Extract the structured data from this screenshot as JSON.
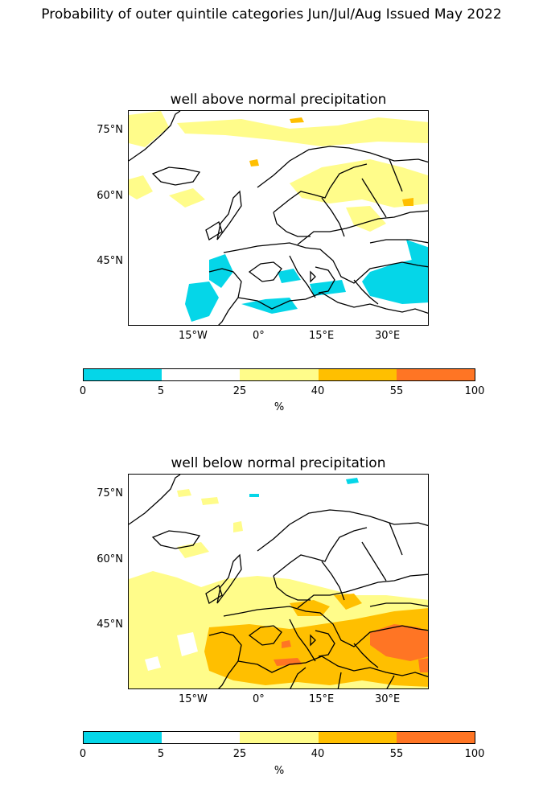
{
  "suptitle": "Probability of outer quintile categories Jun/Jul/Aug Issued May 2022",
  "panels": [
    {
      "title": "well above normal precipitation",
      "x_ticks": [
        "15°W",
        "0°",
        "15°E",
        "30°E"
      ],
      "y_ticks": [
        "75°N",
        "60°N",
        "45°N"
      ],
      "colorbar": {
        "labels": [
          "0",
          "5",
          "25",
          "40",
          "55",
          "100"
        ],
        "unit": "%"
      }
    },
    {
      "title": "well below normal precipitation",
      "x_ticks": [
        "15°W",
        "0°",
        "15°E",
        "30°E"
      ],
      "y_ticks": [
        "75°N",
        "60°N",
        "45°N"
      ],
      "colorbar": {
        "labels": [
          "0",
          "5",
          "25",
          "40",
          "55",
          "100"
        ],
        "unit": "%"
      }
    }
  ],
  "legend_colors": [
    "#05d6e8",
    "#ffffff",
    "#fffc8a",
    "#ffbf00",
    "#ff7524"
  ],
  "map_extent": {
    "lon": [
      -30,
      39
    ],
    "lat": [
      31,
      80
    ]
  },
  "regions": {
    "above": [
      {
        "cat": "25-40",
        "where": "Greenland Sea / Barents Sea"
      },
      {
        "cat": "25-40",
        "where": "Scandinavia, Finland"
      },
      {
        "cat": "25-40",
        "where": "North Atlantic patches"
      },
      {
        "cat": "0-5",
        "where": "Western Mediterranean, Iberia coast"
      },
      {
        "cat": "0-5",
        "where": "Aegean, Turkey, Black Sea"
      },
      {
        "cat": "40-55",
        "where": "Svalbard coast"
      }
    ],
    "below": [
      {
        "cat": "25-40",
        "where": "Atlantic, Iberia, France, Central Europe"
      },
      {
        "cat": "40-55",
        "where": "Mediterranean, North Africa, Balkans"
      },
      {
        "cat": "55-100",
        "where": "Turkey, Aegean, Alboran"
      },
      {
        "cat": "0-5",
        "where": "Svalbard small patches"
      }
    ]
  }
}
